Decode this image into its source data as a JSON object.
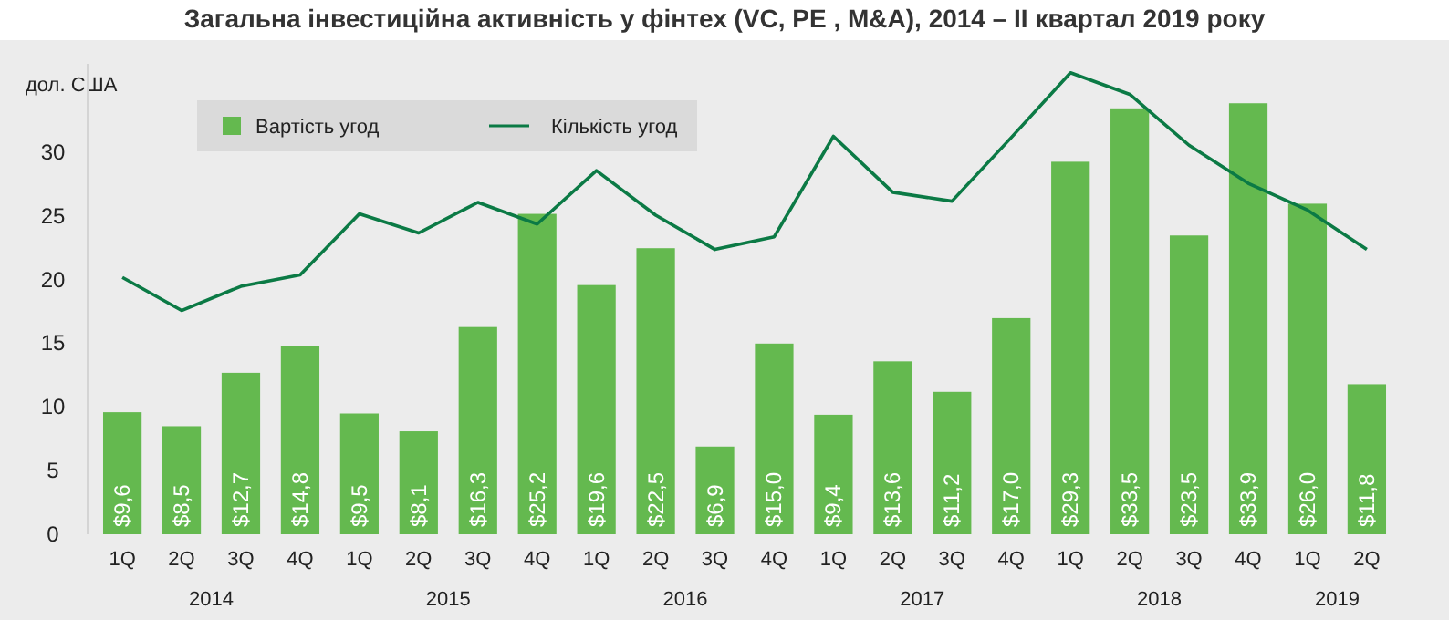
{
  "chart_data": {
    "type": "bar",
    "title": "Загальна інвестиційна активність у фінтех (VC, PE , M&A), 2014 – ІІ квартал 2019 року",
    "ylabel": "дол. США",
    "categories": [
      "1Q",
      "2Q",
      "3Q",
      "4Q",
      "1Q",
      "2Q",
      "3Q",
      "4Q",
      "1Q",
      "2Q",
      "3Q",
      "4Q",
      "1Q",
      "2Q",
      "3Q",
      "4Q",
      "1Q",
      "2Q",
      "3Q",
      "4Q",
      "1Q",
      "2Q"
    ],
    "series": [
      {
        "name": "Вартість угод",
        "color": "#64b94f",
        "values": [
          9.6,
          8.5,
          12.7,
          14.8,
          9.5,
          8.1,
          16.3,
          25.2,
          19.6,
          22.5,
          6.9,
          15.0,
          9.4,
          13.6,
          11.2,
          17.0,
          29.3,
          33.5,
          23.5,
          33.9,
          26.0,
          11.8
        ],
        "value_labels": [
          "$9,6",
          "$8,5",
          "$12,7",
          "$14,8",
          "$9,5",
          "$8,1",
          "$16,3",
          "$25,2",
          "$19,6",
          "$22,5",
          "$6,9",
          "$15,0",
          "$9,4",
          "$13,6",
          "$11,2",
          "$17,0",
          "$29,3",
          "$33,5",
          "$23,5",
          "$33,9",
          "$26,0",
          "$11,8"
        ]
      },
      {
        "name": "Кількість угод",
        "type": "line",
        "color": "#0b7a45",
        "values": [
          20.2,
          17.6,
          19.5,
          20.4,
          25.2,
          23.7,
          26.1,
          24.4,
          28.6,
          25.1,
          22.4,
          23.4,
          31.3,
          26.9,
          26.2,
          31.2,
          36.3,
          34.6,
          30.6,
          27.6,
          25.5,
          22.4
        ]
      }
    ],
    "ylim": [
      0,
      37
    ],
    "yticks": [
      0,
      5,
      10,
      15,
      20,
      25,
      30
    ],
    "grid": false,
    "legend": "top",
    "marker": "none",
    "annotations": [
      "2014",
      "2015",
      "2016",
      "2017",
      "2018",
      "2019"
    ]
  }
}
